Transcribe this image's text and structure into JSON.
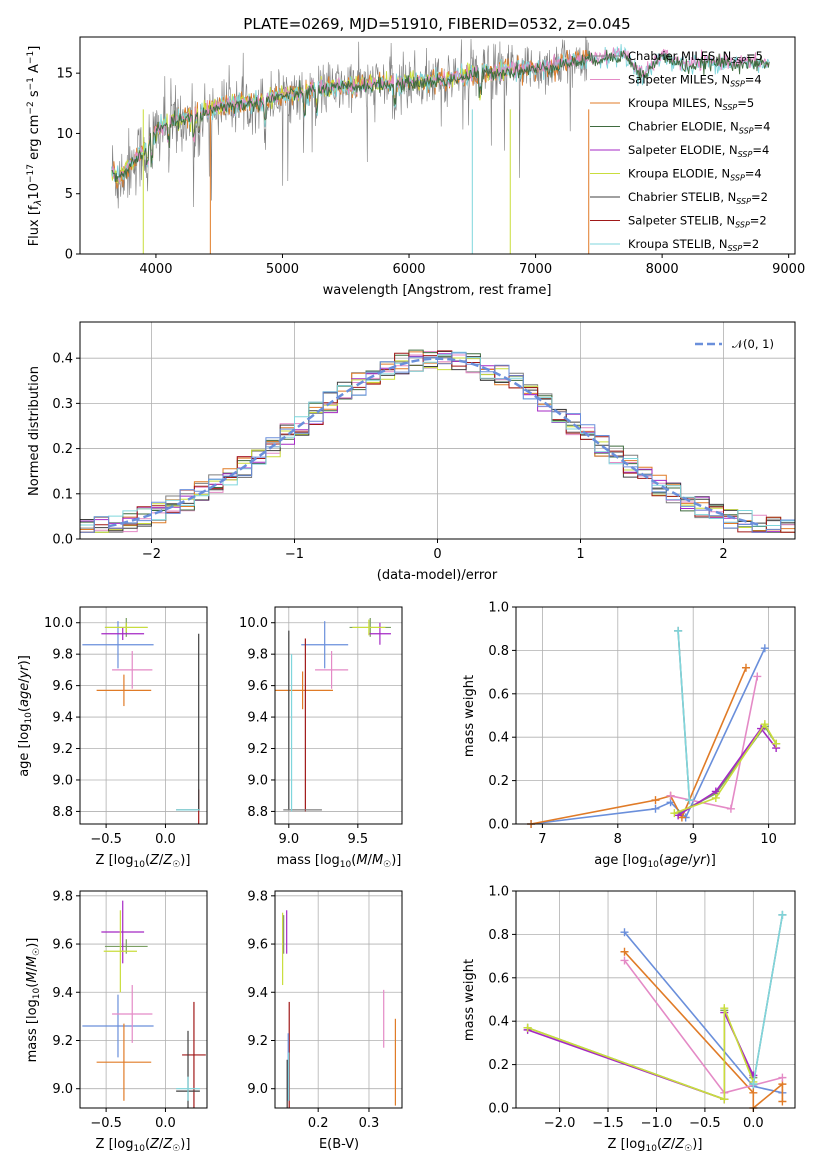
{
  "title": "PLATE=0269, MJD=51910, FIBERID=0532, z=0.045",
  "colors": {
    "blue": "#6a8fdb",
    "orange": "#e07b27",
    "pink": "#e48ac6",
    "gray": "#7f7f7f",
    "green": "#7b9f63",
    "purple": "#a528c4",
    "yellow": "#c9dd3c",
    "darkgray": "#404040",
    "darkred": "#a01818",
    "cyan": "#7fd6dc",
    "darkgreen": "#3f6b3f"
  },
  "chart_data": [
    {
      "id": "spectrum",
      "type": "line",
      "xlabel": "wavelength [Angstrom, rest frame]",
      "ylabel": "Flux [f_λ10^-17 erg cm^-2 s^-1 A^-1]",
      "xlim": [
        3400,
        9050
      ],
      "ylim": [
        0,
        18
      ],
      "xticks": [
        4000,
        5000,
        6000,
        7000,
        8000,
        9000
      ],
      "yticks": [
        0,
        5,
        10,
        15
      ],
      "legend": {
        "placement": "top-right"
      },
      "series": [
        {
          "name": "Chabrier MILES, N_SSP=5",
          "color": "#7f7f7f"
        },
        {
          "name": "Salpeter MILES, N_SSP=4",
          "color": "#e48ac6"
        },
        {
          "name": "Kroupa MILES, N_SSP=5",
          "color": "#e07b27"
        },
        {
          "name": "Chabrier ELODIE, N_SSP=4",
          "color": "#3f6b3f"
        },
        {
          "name": "Salpeter ELODIE, N_SSP=4",
          "color": "#a528c4"
        },
        {
          "name": "Kroupa ELODIE, N_SSP=4",
          "color": "#c9dd3c"
        },
        {
          "name": "Chabrier STELIB, N_SSP=2",
          "color": "#404040"
        },
        {
          "name": "Salpeter STELIB, N_SSP=2",
          "color": "#a01818"
        },
        {
          "name": "Kroupa STELIB, N_SSP=2",
          "color": "#7fd6dc"
        }
      ],
      "continuum": {
        "x": [
          3650,
          3700,
          3800,
          3900,
          4000,
          4100,
          4300,
          4500,
          4800,
          5000,
          5300,
          5600,
          6000,
          6300,
          6600,
          7000,
          7300,
          7500,
          7700,
          7850,
          8000,
          8200,
          8400,
          8600,
          8800
        ],
        "y": [
          7.0,
          6.2,
          7.5,
          8.5,
          10.2,
          10.9,
          11.4,
          12.3,
          12.6,
          13.2,
          13.7,
          14.0,
          14.2,
          14.5,
          15.1,
          15.4,
          16.0,
          16.3,
          16.6,
          14.8,
          16.5,
          15.6,
          16.0,
          15.9,
          15.8
        ]
      },
      "data_extent": [
        3650,
        7420
      ],
      "model_extent": [
        3650,
        8850
      ]
    },
    {
      "id": "residuals",
      "type": "line",
      "xlabel": "(data-model)/error",
      "ylabel": "Normed distribution",
      "xlim": [
        -2.5,
        2.5
      ],
      "ylim": [
        0,
        0.48
      ],
      "xticks": [
        -2,
        -1,
        0,
        1,
        2
      ],
      "yticks": [
        0.0,
        0.1,
        0.2,
        0.3,
        0.4
      ],
      "grid": true,
      "legend": {
        "placement": "top-right",
        "label": "𝒩(0, 1)"
      },
      "bin_width": 0.1
    },
    {
      "id": "age-vs-Z",
      "type": "scatter",
      "xlabel": "Z [log₁₀(Z/Z☉)]",
      "ylabel": "age  [log₁₀(age/yr)]",
      "xlim": [
        -0.72,
        0.35
      ],
      "ylim": [
        8.72,
        10.1
      ],
      "xticks": [
        -0.5,
        0.0
      ],
      "yticks": [
        8.8,
        9.0,
        9.2,
        9.4,
        9.6,
        9.8,
        10.0
      ],
      "grid": true,
      "points": [
        {
          "x": -0.4,
          "y": 9.86,
          "xerr": 0.3,
          "yerr": 0.15,
          "color": "#6a8fdb"
        },
        {
          "x": -0.35,
          "y": 9.57,
          "xerr": 0.23,
          "yerr": 0.1,
          "color": "#e07b27"
        },
        {
          "x": -0.28,
          "y": 9.7,
          "xerr": 0.17,
          "yerr": 0.12,
          "color": "#e48ac6"
        },
        {
          "x": -0.33,
          "y": 9.97,
          "xerr": 0.18,
          "yerr": 0.06,
          "color": "#7b9f63"
        },
        {
          "x": -0.36,
          "y": 9.93,
          "xerr": 0.18,
          "yerr": 0.04,
          "color": "#a528c4"
        },
        {
          "x": -0.33,
          "y": 9.97,
          "xerr": 0.18,
          "yerr": 0.03,
          "color": "#c9dd3c"
        },
        {
          "x": 0.19,
          "y": 8.81,
          "xerr": 0.1,
          "yerr": 0.0,
          "color": "#7f7f7f"
        },
        {
          "x": 0.28,
          "y": 8.82,
          "xerr": 0.0,
          "yerr": 0.12,
          "color": "#a01818"
        },
        {
          "x": 0.28,
          "y": 9.37,
          "xerr": 0.0,
          "yerr": 0.56,
          "color": "#404040"
        },
        {
          "x": 0.19,
          "y": 8.81,
          "xerr": 0.1,
          "yerr": 0.0,
          "color": "#7fd6dc"
        }
      ]
    },
    {
      "id": "age-vs-mass",
      "type": "scatter",
      "xlabel": "mass [log₁₀(M/M☉)]",
      "ylabel": "",
      "xlim": [
        8.9,
        9.82
      ],
      "ylim": [
        8.72,
        10.1
      ],
      "xticks": [
        9.0,
        9.5
      ],
      "yticks": [
        8.8,
        9.0,
        9.2,
        9.4,
        9.6,
        9.8,
        10.0
      ],
      "grid": true,
      "points": [
        {
          "x": 9.26,
          "y": 9.86,
          "xerr": 0.17,
          "yerr": 0.15,
          "color": "#6a8fdb"
        },
        {
          "x": 9.1,
          "y": 9.57,
          "xerr": 0.22,
          "yerr": 0.12,
          "color": "#e07b27"
        },
        {
          "x": 9.31,
          "y": 9.7,
          "xerr": 0.12,
          "yerr": 0.12,
          "color": "#e48ac6"
        },
        {
          "x": 9.59,
          "y": 9.97,
          "xerr": 0.15,
          "yerr": 0.06,
          "color": "#7b9f63"
        },
        {
          "x": 9.66,
          "y": 9.93,
          "xerr": 0.08,
          "yerr": 0.07,
          "color": "#a528c4"
        },
        {
          "x": 9.58,
          "y": 9.97,
          "xerr": 0.12,
          "yerr": 0.05,
          "color": "#c9dd3c"
        },
        {
          "x": 9.0,
          "y": 9.38,
          "xerr": 0.0,
          "yerr": 0.57,
          "color": "#404040"
        },
        {
          "x": 9.12,
          "y": 9.35,
          "xerr": 0.0,
          "yerr": 0.55,
          "color": "#a01818"
        },
        {
          "x": 9.1,
          "y": 8.81,
          "xerr": 0.14,
          "yerr": 0.0,
          "color": "#7f7f7f"
        },
        {
          "x": 9.02,
          "y": 9.3,
          "xerr": 0.0,
          "yerr": 0.5,
          "color": "#7fd6dc"
        }
      ]
    },
    {
      "id": "weight-vs-age",
      "type": "line",
      "xlabel": "age  [log₁₀(age/yr)]",
      "ylabel": "mass weight",
      "xlim": [
        6.65,
        10.35
      ],
      "ylim": [
        0,
        1.0
      ],
      "xticks": [
        7,
        8,
        9,
        10
      ],
      "yticks": [
        0.0,
        0.2,
        0.4,
        0.6,
        0.8,
        1.0
      ],
      "grid": true,
      "series": [
        {
          "color": "#6a8fdb",
          "x": [
            6.85,
            8.5,
            8.7,
            8.9,
            9.95
          ],
          "y": [
            0.0,
            0.07,
            0.1,
            0.03,
            0.81
          ]
        },
        {
          "color": "#e07b27",
          "x": [
            6.85,
            8.5,
            8.7,
            8.85,
            9.7
          ],
          "y": [
            0.0,
            0.11,
            0.13,
            0.03,
            0.72
          ]
        },
        {
          "color": "#e48ac6",
          "x": [
            8.7,
            9.5,
            9.85
          ],
          "y": [
            0.13,
            0.07,
            0.68
          ]
        },
        {
          "color": "#7b9f63",
          "x": [
            8.8,
            9.3,
            9.95,
            10.1
          ],
          "y": [
            0.05,
            0.14,
            0.45,
            0.37
          ]
        },
        {
          "color": "#a528c4",
          "x": [
            8.8,
            9.3,
            9.9,
            10.1
          ],
          "y": [
            0.04,
            0.15,
            0.44,
            0.35
          ]
        },
        {
          "color": "#c9dd3c",
          "x": [
            8.75,
            9.3,
            9.95,
            10.1
          ],
          "y": [
            0.05,
            0.12,
            0.46,
            0.37
          ]
        },
        {
          "color": "#7f7f7f",
          "x": [
            8.8,
            8.95
          ],
          "y": [
            0.89,
            0.11
          ]
        },
        {
          "color": "#7fd6dc",
          "x": [
            8.8,
            8.95
          ],
          "y": [
            0.89,
            0.11
          ]
        }
      ]
    },
    {
      "id": "mass-vs-Z",
      "type": "scatter",
      "xlabel": "Z [log₁₀(Z/Z☉)]",
      "ylabel": "mass [log₁₀(M/M☉)]",
      "xlim": [
        -0.72,
        0.35
      ],
      "ylim": [
        8.92,
        9.82
      ],
      "xticks": [
        -0.5,
        0.0
      ],
      "yticks": [
        9.0,
        9.2,
        9.4,
        9.6,
        9.8
      ],
      "grid": true,
      "points": [
        {
          "x": -0.4,
          "y": 9.26,
          "xerr": 0.3,
          "yerr": 0.13,
          "color": "#6a8fdb"
        },
        {
          "x": -0.35,
          "y": 9.11,
          "xerr": 0.23,
          "yerr": 0.16,
          "color": "#e07b27"
        },
        {
          "x": -0.28,
          "y": 9.31,
          "xerr": 0.17,
          "yerr": 0.12,
          "color": "#e48ac6"
        },
        {
          "x": -0.33,
          "y": 9.59,
          "xerr": 0.18,
          "yerr": 0.03,
          "color": "#7b9f63"
        },
        {
          "x": -0.36,
          "y": 9.65,
          "xerr": 0.18,
          "yerr": 0.13,
          "color": "#a528c4"
        },
        {
          "x": -0.38,
          "y": 9.57,
          "xerr": 0.14,
          "yerr": 0.17,
          "color": "#c9dd3c"
        },
        {
          "x": 0.24,
          "y": 9.14,
          "xerr": 0.1,
          "yerr": 0.22,
          "color": "#a01818"
        },
        {
          "x": 0.19,
          "y": 8.99,
          "xerr": 0.1,
          "yerr": 0.25,
          "color": "#404040"
        },
        {
          "x": 0.19,
          "y": 9.0,
          "xerr": 0.1,
          "yerr": 0.05,
          "color": "#7fd6dc"
        }
      ]
    },
    {
      "id": "mass-vs-EBV",
      "type": "scatter",
      "xlabel": "E(B-V)",
      "ylabel": "",
      "xlim": [
        0.115,
        0.365
      ],
      "ylim": [
        8.92,
        9.82
      ],
      "xticks": [
        0.2,
        0.3
      ],
      "yticks": [
        9.0,
        9.2,
        9.4,
        9.6,
        9.8
      ],
      "grid": true,
      "points": [
        {
          "x": 0.132,
          "y": 9.64,
          "xerr": 0.0,
          "yerr": 0.08,
          "color": "#7f7f7f"
        },
        {
          "x": 0.138,
          "y": 9.65,
          "xerr": 0.0,
          "yerr": 0.09,
          "color": "#a528c4"
        },
        {
          "x": 0.13,
          "y": 9.58,
          "xerr": 0.0,
          "yerr": 0.15,
          "color": "#c9dd3c"
        },
        {
          "x": 0.143,
          "y": 9.14,
          "xerr": 0.0,
          "yerr": 0.22,
          "color": "#a01818"
        },
        {
          "x": 0.141,
          "y": 9.09,
          "xerr": 0.0,
          "yerr": 0.14,
          "color": "#6a8fdb"
        },
        {
          "x": 0.139,
          "y": 9.0,
          "xerr": 0.0,
          "yerr": 0.12,
          "color": "#404040"
        },
        {
          "x": 0.142,
          "y": 9.05,
          "xerr": 0.0,
          "yerr": 0.1,
          "color": "#7fd6dc"
        },
        {
          "x": 0.329,
          "y": 9.29,
          "xerr": 0.0,
          "yerr": 0.12,
          "color": "#e48ac6"
        },
        {
          "x": 0.352,
          "y": 9.11,
          "xerr": 0.0,
          "yerr": 0.18,
          "color": "#e07b27"
        }
      ]
    },
    {
      "id": "weight-vs-Z",
      "type": "line",
      "xlabel": "Z [log₁₀(Z/Z☉)]",
      "ylabel": "mass weight",
      "xlim": [
        -2.45,
        0.43
      ],
      "ylim": [
        0,
        1.0
      ],
      "xticks": [
        -2.0,
        -1.5,
        -1.0,
        -0.5,
        0.0
      ],
      "yticks": [
        0.0,
        0.2,
        0.4,
        0.6,
        0.8,
        1.0
      ],
      "grid": true,
      "series": [
        {
          "color": "#6a8fdb",
          "x": [
            -1.33,
            0.0,
            0.3
          ],
          "y": [
            0.81,
            0.1,
            0.07
          ]
        },
        {
          "color": "#e07b27",
          "x": [
            -1.33,
            0.0,
            0.0,
            0.3,
            0.3
          ],
          "y": [
            0.72,
            0.07,
            0.0,
            0.11,
            0.03
          ]
        },
        {
          "color": "#e48ac6",
          "x": [
            -1.33,
            -0.3,
            0.3
          ],
          "y": [
            0.68,
            0.07,
            0.14
          ]
        },
        {
          "color": "#7b9f63",
          "x": [
            -2.33,
            -0.3,
            -0.3,
            0.0
          ],
          "y": [
            0.37,
            0.04,
            0.45,
            0.14
          ]
        },
        {
          "color": "#a528c4",
          "x": [
            -2.33,
            -0.3,
            -0.3,
            0.0
          ],
          "y": [
            0.36,
            0.04,
            0.44,
            0.15
          ]
        },
        {
          "color": "#c9dd3c",
          "x": [
            -2.33,
            -0.3,
            -0.3,
            0.0
          ],
          "y": [
            0.37,
            0.04,
            0.46,
            0.12
          ]
        },
        {
          "color": "#7f7f7f",
          "x": [
            0.0,
            0.3
          ],
          "y": [
            0.11,
            0.89
          ]
        },
        {
          "color": "#7fd6dc",
          "x": [
            0.0,
            0.3
          ],
          "y": [
            0.11,
            0.89
          ]
        }
      ]
    }
  ]
}
